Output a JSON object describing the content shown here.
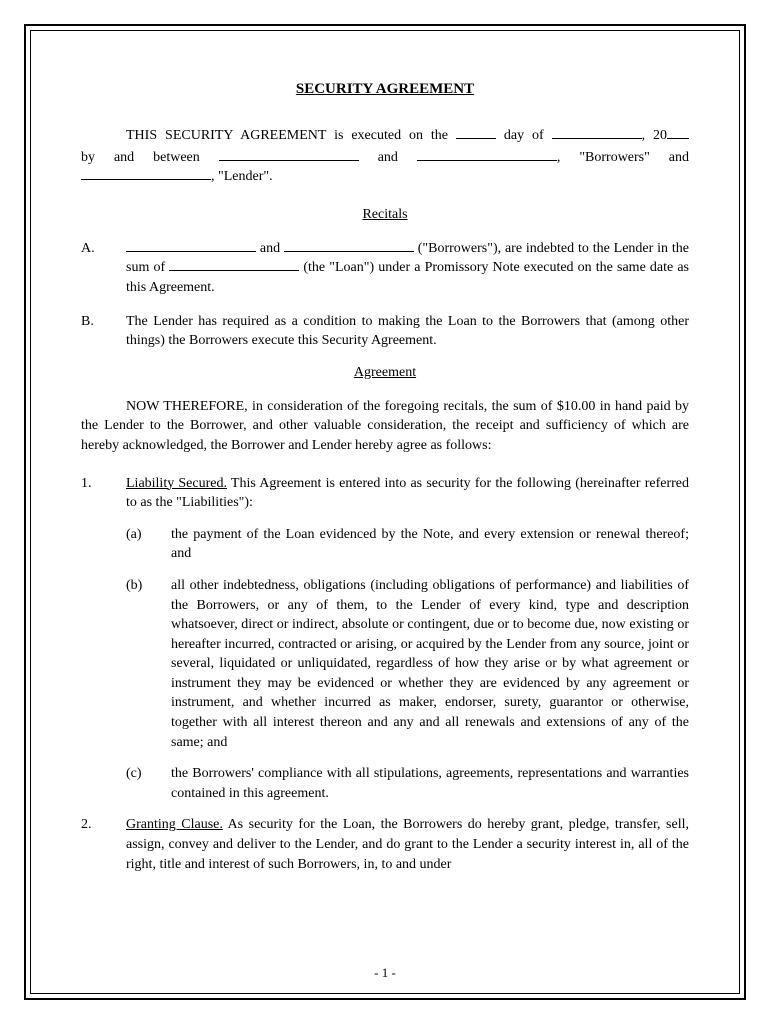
{
  "title": "SECURITY AGREEMENT",
  "intro": {
    "part1": "THIS SECURITY AGREEMENT is executed on the ",
    "part2": " day of ",
    "part3": ", 20",
    "line2_by": "by",
    "line2_and1": "and",
    "line2_between": "between",
    "line2_and2": "and",
    "line2_comma": ",",
    "line2_borrowers": "\"Borrowers\"",
    "line2_and3": "and",
    "line3": ", \"Lender\"."
  },
  "recitals": {
    "header": "Recitals",
    "items": [
      {
        "label": "A.",
        "text_pre": " and ",
        "text_mid": " (\"Borrowers\"), are indebted to the Lender in the sum of ",
        "text_post": " (the \"Loan\") under a Promissory Note executed on the same date as this Agreement."
      },
      {
        "label": "B.",
        "text": "The Lender has required as a condition to making the Loan to the Borrowers that (among other things) the Borrowers execute this Security Agreement."
      }
    ]
  },
  "agreement": {
    "header": "Agreement",
    "now_therefore": "NOW THEREFORE, in consideration of the foregoing recitals, the sum of $10.00 in hand paid by the Lender to the Borrower, and other valuable consideration, the receipt and sufficiency of which are hereby acknowledged, the Borrower and Lender hereby agree as follows:"
  },
  "clauses": [
    {
      "num": "1.",
      "title": "Liability Secured.",
      "body": "  This Agreement is entered into as security for the following (hereinafter referred to as the \"Liabilities\"):",
      "subs": [
        {
          "label": "(a)",
          "text": "the payment of the Loan evidenced by the Note, and every extension or renewal thereof; and"
        },
        {
          "label": "(b)",
          "text": "all other indebtedness, obligations (including obligations of performance) and liabilities of the Borrowers, or any of them, to the Lender of every kind, type and description whatsoever, direct or indirect, absolute or contingent, due or to become due, now existing or hereafter incurred, contracted or arising, or acquired by the Lender from any source, joint or several, liquidated or unliquidated, regardless of how they arise or by what agreement or instrument they may be evidenced or whether they are evidenced by any agreement or instrument, and whether incurred as maker, endorser, surety, guarantor or otherwise, together with all interest thereon and any and all renewals and extensions of any of the same; and"
        },
        {
          "label": "(c)",
          "text": "the Borrowers' compliance with all stipulations, agreements, representations and warranties contained in this agreement."
        }
      ]
    },
    {
      "num": "2.",
      "title": "Granting Clause.",
      "body": "  As security for the Loan, the Borrowers do hereby grant, pledge, transfer, sell, assign, convey and deliver to the Lender, and do grant to the Lender a security interest in, all of the right, title and interest of such Borrowers, in, to and under"
    }
  ],
  "page_number": "- 1 -"
}
